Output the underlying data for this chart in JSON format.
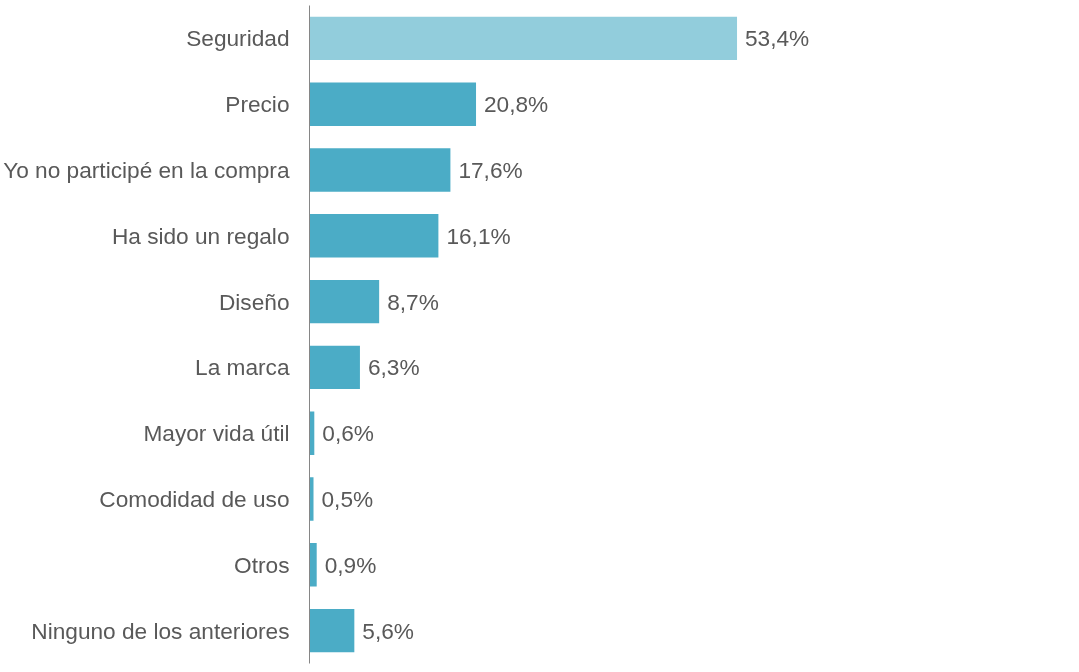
{
  "chart_data": {
    "type": "bar",
    "orientation": "horizontal",
    "categories": [
      "Seguridad",
      "Precio",
      "Yo no participé en la compra",
      "Ha sido un regalo",
      "Diseño",
      "La marca",
      "Mayor vida útil",
      "Comodidad de uso",
      "Otros",
      "Ninguno de los anteriores"
    ],
    "values": [
      53.4,
      20.8,
      17.6,
      16.1,
      8.7,
      6.3,
      0.6,
      0.5,
      0.9,
      5.6
    ],
    "colors": [
      "#92cddc",
      "#4bacc6",
      "#4bacc6",
      "#4bacc6",
      "#4bacc6",
      "#4bacc6",
      "#4bacc6",
      "#4bacc6",
      "#4bacc6",
      "#4bacc6"
    ],
    "value_labels": [
      "53,4%",
      "20,8%",
      "17,6%",
      "16,1%",
      "8,7%",
      "6,3%",
      "0,6%",
      "0,5%",
      "0,9%",
      "5,6%"
    ],
    "tick_labels": "y",
    "grid": false
  }
}
